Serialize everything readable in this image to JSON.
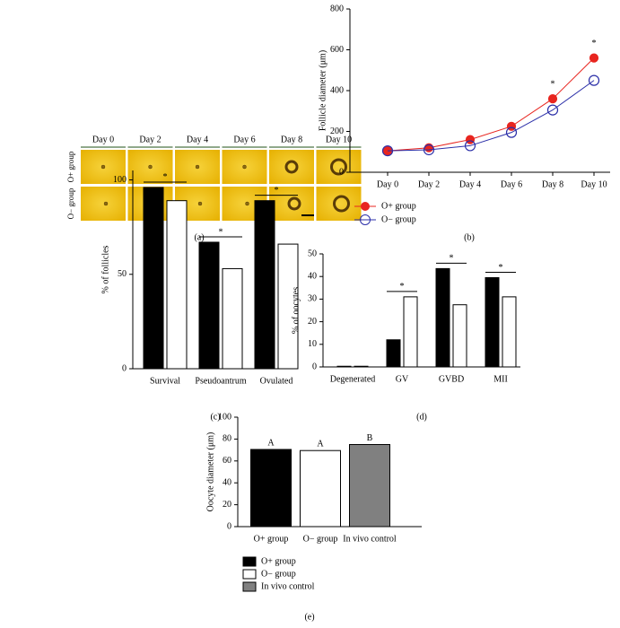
{
  "panel_a": {
    "columns": [
      "Day 0",
      "Day 2",
      "Day 4",
      "Day 6",
      "Day 8",
      "Day 10"
    ],
    "rows": [
      "O+ group",
      "O− group"
    ],
    "caption": "(a)"
  },
  "chart_data": [
    {
      "type": "line",
      "caption": "(b)",
      "ylabel": "Follicle diameter (μm)",
      "categories": [
        "Day 0",
        "Day 2",
        "Day 4",
        "Day 6",
        "Day 8",
        "Day 10"
      ],
      "series": [
        {
          "name": "O+ group",
          "color": "#e8251f",
          "marker": "filled",
          "values": [
            105,
            120,
            160,
            225,
            360,
            560
          ]
        },
        {
          "name": "O− group",
          "color": "#2b2fa8",
          "marker": "open",
          "values": [
            105,
            110,
            130,
            195,
            305,
            450
          ]
        }
      ],
      "annotations": [
        null,
        null,
        null,
        null,
        "*",
        "*"
      ],
      "ylim": [
        0,
        800
      ],
      "yticks": [
        0,
        200,
        400,
        600,
        800
      ],
      "legend": "bottom-left"
    },
    {
      "type": "bar",
      "caption": "(c)",
      "ylabel": "% of follicles",
      "categories": [
        "Survival",
        "Pseudoantrum",
        "Ovulated"
      ],
      "series": [
        {
          "color": "#000000",
          "values": [
            96,
            67,
            89
          ]
        },
        {
          "color": "#ffffff",
          "values": [
            89,
            53,
            66
          ]
        }
      ],
      "annotations": [
        "*",
        "*",
        "*"
      ],
      "ylim": [
        0,
        105
      ],
      "yticks": [
        0,
        50,
        100
      ]
    },
    {
      "type": "bar",
      "caption": "(d)",
      "ylabel": "% of oocytes",
      "categories": [
        "Degenerated",
        "GV",
        "GVBD",
        "MII"
      ],
      "series": [
        {
          "color": "#000000",
          "values": [
            0.3,
            12,
            43.5,
            39.5
          ]
        },
        {
          "color": "#ffffff",
          "values": [
            0.3,
            31,
            27.5,
            31
          ]
        }
      ],
      "annotations": [
        null,
        "*",
        "*",
        "*"
      ],
      "ylim": [
        0,
        50
      ],
      "yticks": [
        0,
        10,
        20,
        30,
        40,
        50
      ]
    },
    {
      "type": "bar",
      "caption": "(e)",
      "ylabel": "Oocyte diameter (μm)",
      "categories": [
        "O+ group",
        "O− group",
        "In vivo control"
      ],
      "values": [
        70.5,
        69.5,
        75
      ],
      "colors": [
        "#000000",
        "#ffffff",
        "#808080"
      ],
      "annotations": [
        "A",
        "A",
        "B"
      ],
      "ylim": [
        0,
        100
      ],
      "yticks": [
        0,
        20,
        40,
        60,
        80,
        100
      ],
      "legend": "bottom-left"
    }
  ]
}
